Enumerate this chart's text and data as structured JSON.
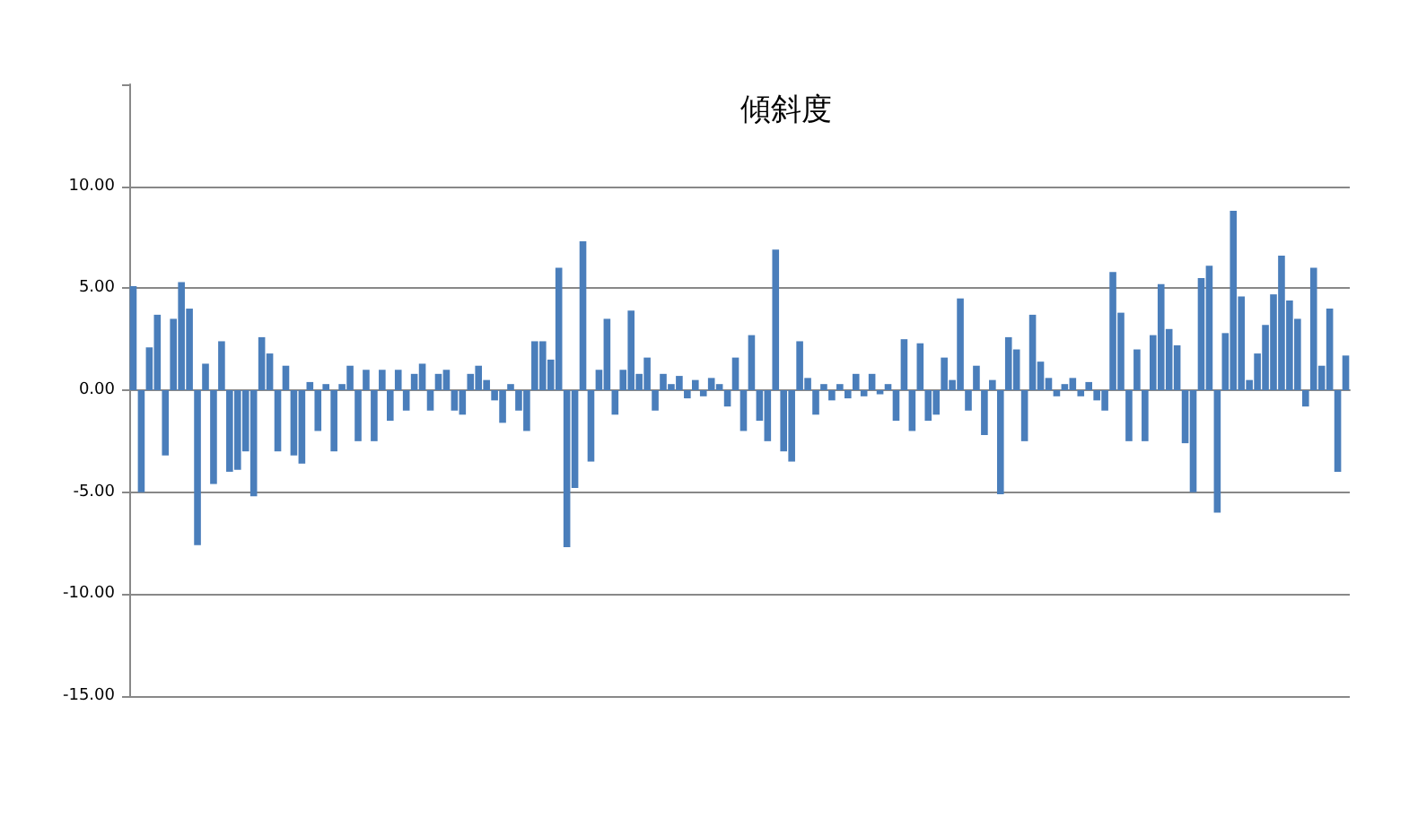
{
  "chart_data": {
    "type": "bar",
    "title": "傾斜度",
    "categories": [
      null,
      null,
      null,
      null,
      null,
      null,
      null,
      null,
      null,
      null,
      null,
      null,
      null,
      null,
      null,
      null,
      null,
      null,
      null,
      null,
      null,
      null,
      null,
      null,
      null,
      null,
      null,
      null,
      null,
      null,
      null,
      null,
      null,
      null,
      null,
      null,
      null,
      null,
      null,
      null,
      null,
      null,
      null,
      null,
      null,
      null,
      null,
      null,
      null,
      null,
      null,
      null,
      null,
      null,
      null,
      null,
      null,
      null,
      null,
      null,
      null,
      null,
      null,
      null,
      null,
      null,
      null,
      null,
      null,
      null,
      null,
      null,
      null,
      null,
      null,
      null,
      null,
      null,
      null,
      null,
      null,
      null,
      null,
      null,
      null,
      null,
      null,
      null,
      null,
      null,
      null,
      null,
      null,
      null,
      null,
      null,
      null,
      null,
      null,
      null,
      null,
      null,
      null,
      null,
      null,
      null,
      null,
      null,
      null,
      null,
      null,
      null,
      null,
      null,
      null,
      null,
      null,
      null,
      null,
      null,
      null,
      null,
      null,
      null,
      null,
      null,
      null,
      null,
      null,
      null,
      null,
      null,
      null,
      null,
      null,
      null,
      null,
      null,
      null,
      null,
      null,
      null,
      null,
      null,
      null,
      null,
      null,
      null,
      null,
      null,
      null,
      null
    ],
    "values": [
      5.1,
      -5.0,
      2.1,
      3.7,
      -3.2,
      3.5,
      5.3,
      4.0,
      -7.6,
      1.3,
      -4.6,
      2.4,
      -4.0,
      -3.9,
      -3.0,
      -5.2,
      2.6,
      1.8,
      -3.0,
      1.2,
      -3.2,
      -3.6,
      0.4,
      -2.0,
      0.3,
      -3.0,
      0.3,
      1.2,
      -2.5,
      1.0,
      -2.5,
      1.0,
      -1.5,
      1.0,
      -1.0,
      0.8,
      1.3,
      -1.0,
      0.8,
      1.0,
      -1.0,
      -1.2,
      0.8,
      1.2,
      0.5,
      -0.5,
      -1.6,
      0.3,
      -1.0,
      -2.0,
      2.4,
      2.4,
      1.5,
      6.0,
      -7.7,
      -4.8,
      7.3,
      -3.5,
      1.0,
      3.5,
      -1.2,
      1.0,
      3.9,
      0.8,
      1.6,
      -1.0,
      0.8,
      0.3,
      0.7,
      -0.4,
      0.5,
      -0.3,
      0.6,
      0.3,
      -0.8,
      1.6,
      -2.0,
      2.7,
      -1.5,
      -2.5,
      6.9,
      -3.0,
      -3.5,
      2.4,
      0.6,
      -1.2,
      0.3,
      -0.5,
      0.3,
      -0.4,
      0.8,
      -0.3,
      0.8,
      -0.2,
      0.3,
      -1.5,
      2.5,
      -2.0,
      2.3,
      -1.5,
      -1.2,
      1.6,
      0.5,
      4.5,
      -1.0,
      1.2,
      -2.2,
      0.5,
      -5.1,
      2.6,
      2.0,
      -2.5,
      3.7,
      1.4,
      0.6,
      -0.3,
      0.3,
      0.6,
      -0.3,
      0.4,
      -0.5,
      -1.0,
      5.8,
      3.8,
      -2.5,
      2.0,
      -2.5,
      2.7,
      5.2,
      3.0,
      2.2,
      -2.6,
      -5.0,
      5.5,
      6.1,
      -6.0,
      2.8,
      8.8,
      4.6,
      0.5,
      1.8,
      3.2,
      4.7,
      6.6,
      4.4,
      3.5,
      -0.8,
      6.0,
      1.2,
      4.0,
      -4.0,
      1.7
    ],
    "color": "#4a7ebb",
    "ylim": [
      -15,
      15
    ],
    "yticks": [
      {
        "value": -15,
        "label": "-15.00"
      },
      {
        "value": -10,
        "label": "-10.00"
      },
      {
        "value": -5,
        "label": "-5.00"
      },
      {
        "value": 0,
        "label": "0.00"
      },
      {
        "value": 5,
        "label": "5.00"
      },
      {
        "value": 10,
        "label": "10.00"
      },
      {
        "value": 15,
        "label": null
      }
    ],
    "grid": "y"
  }
}
